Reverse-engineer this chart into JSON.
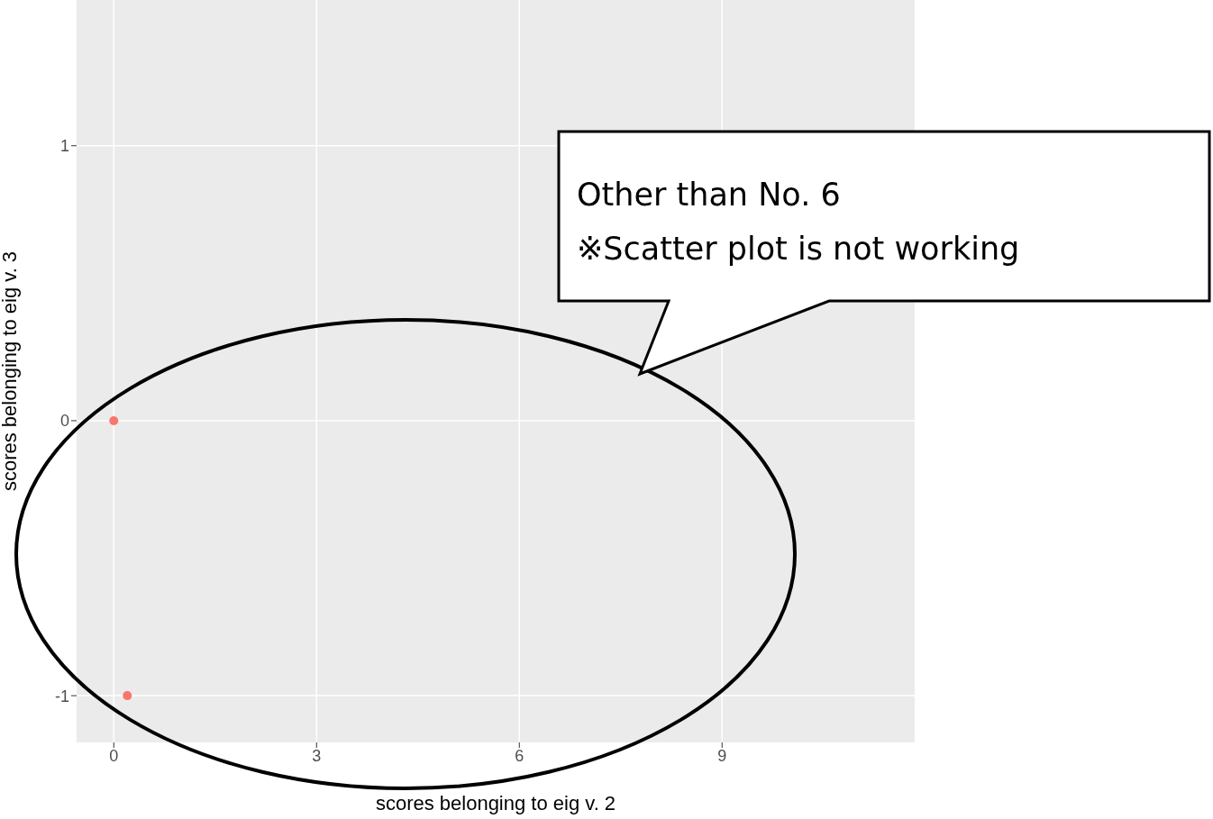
{
  "chart_data": {
    "type": "scatter",
    "xlabel": "scores belonging to eig v. 2",
    "ylabel": "scores belonging to eig v. 3",
    "series": [
      {
        "color": "#f8766d",
        "x": [
          0,
          0.2
        ],
        "values": [
          0,
          -1
        ]
      }
    ],
    "xlim": [
      -0.55,
      11.85
    ],
    "ylim": [
      -1.17,
      1.53
    ],
    "xticks": [
      0,
      3,
      6,
      9
    ],
    "yticks": [
      -1,
      0,
      1
    ],
    "grid": true,
    "marker": "circle",
    "annotations": [
      "Other than No. 6",
      "※Scatter plot is not working"
    ]
  }
}
